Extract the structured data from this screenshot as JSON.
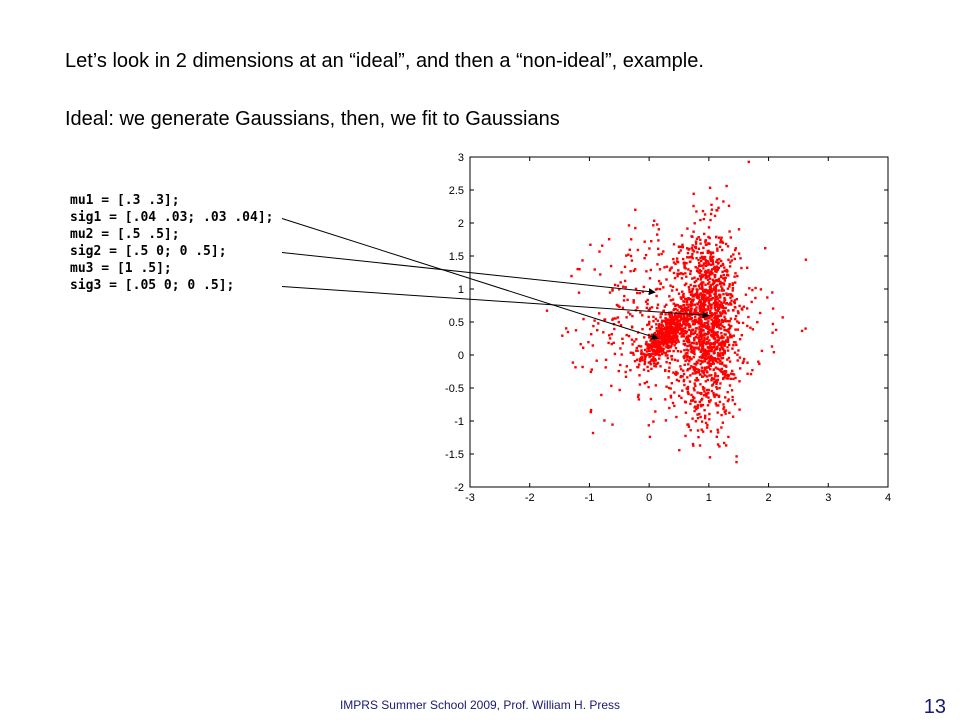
{
  "slide": {
    "headline": "Let’s look in 2 dimensions at an “ideal”, and then a “non-ideal”, example.",
    "subhead": "Ideal: we generate Gaussians, then, we fit to Gaussians",
    "code_lines": [
      "mu1 = [.3 .3];",
      "sig1 = [.04 .03; .03 .04];",
      "mu2 = [.5 .5];",
      "sig2 = [.5 0; 0 .5];",
      "mu3 = [1 .5];",
      "sig3 = [.05 0; 0 .5];"
    ],
    "footer": "IMPRS Summer School 2009, Prof. William H. Press",
    "page_number": "13"
  },
  "chart_data": {
    "type": "scatter",
    "title": "",
    "xlabel": "",
    "ylabel": "",
    "xlim": [
      -3,
      4
    ],
    "ylim": [
      -2,
      3
    ],
    "xticks": [
      "-3",
      "-2",
      "-1",
      "0",
      "1",
      "2",
      "3",
      "4"
    ],
    "yticks": [
      "-2",
      "-1.5",
      "-1",
      "-0.5",
      "0",
      "0.5",
      "1",
      "1.5",
      "2",
      "2.5",
      "3"
    ],
    "grid": false,
    "marker_color": "#ff0000",
    "arrow_color": "#000000",
    "arrow_targets": [
      {
        "x": 0.15,
        "y": 0.25
      },
      {
        "x": 0.1,
        "y": 0.95
      },
      {
        "x": 1.0,
        "y": 0.6
      }
    ],
    "series": [
      {
        "mean": [
          0.3,
          0.3
        ],
        "sd": [
          0.2,
          0.2
        ],
        "rho": 0.75,
        "count": 500
      },
      {
        "mean": [
          0.5,
          0.5
        ],
        "sd": [
          0.707,
          0.707
        ],
        "rho": 0.0,
        "count": 700
      },
      {
        "mean": [
          1.0,
          0.5
        ],
        "sd": [
          0.224,
          0.707
        ],
        "rho": 0.0,
        "count": 1100
      }
    ]
  }
}
